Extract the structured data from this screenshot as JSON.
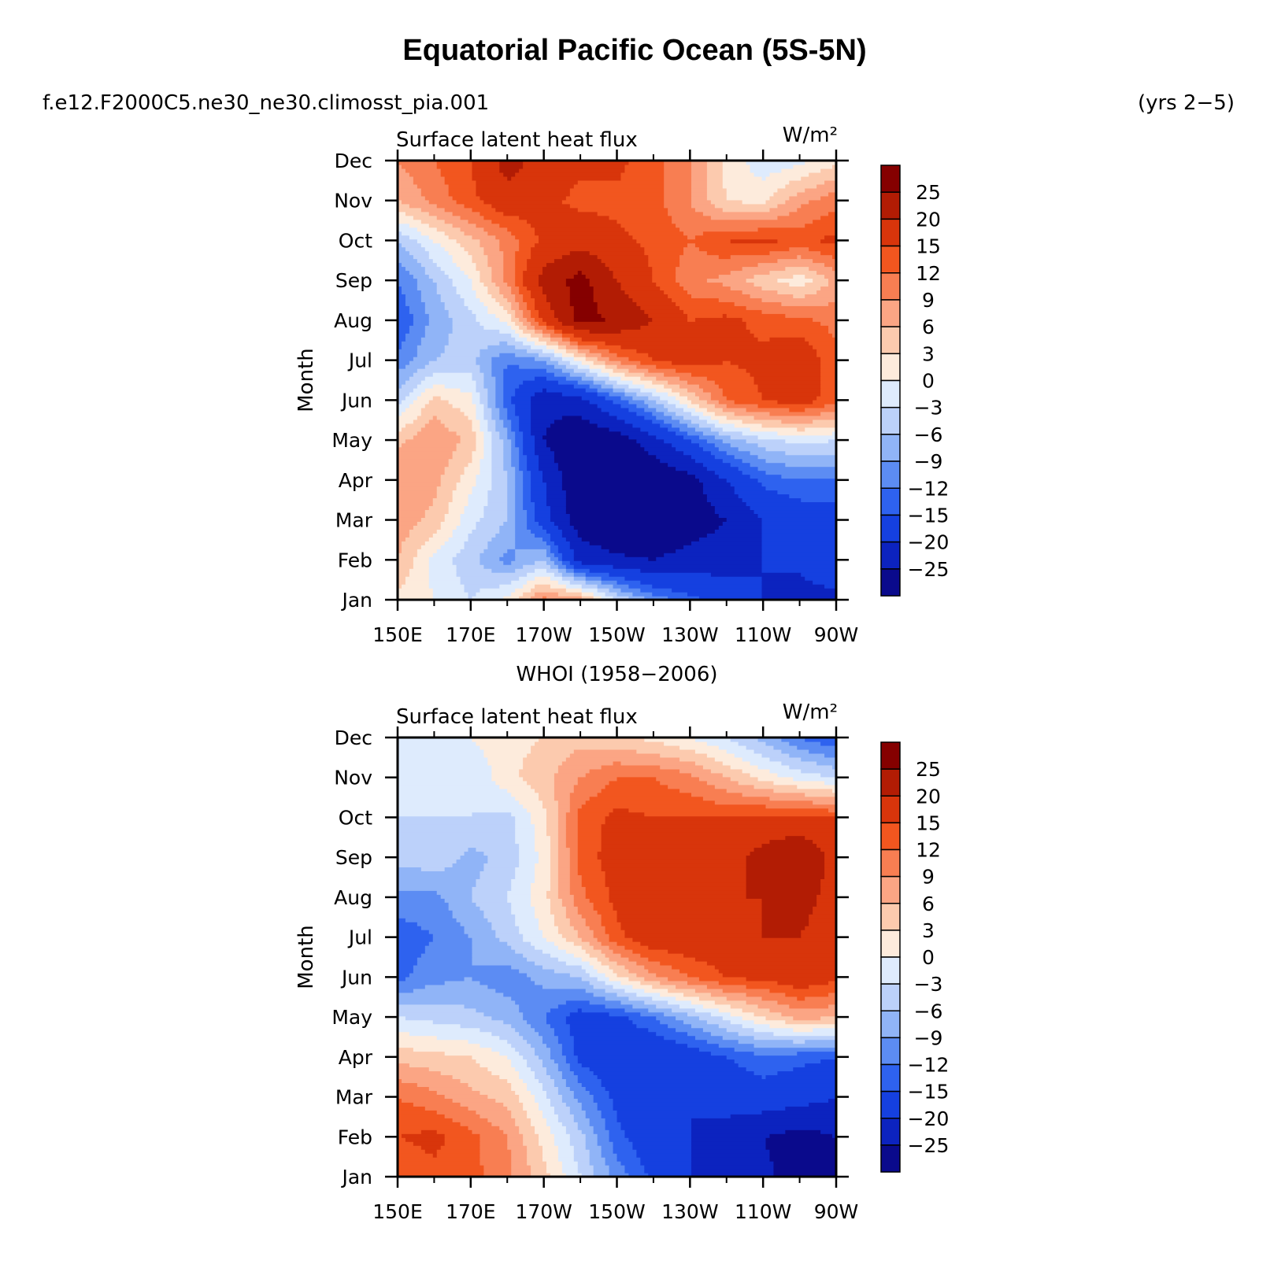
{
  "figure": {
    "title": "Equatorial Pacific Ocean (5S-5N)",
    "case_name": "f.e12.F2000C5.ne30_ne30.climosst_pia.001",
    "years": "(yrs 2−5)"
  },
  "chart_data": [
    {
      "type": "heatmap",
      "panel_title": "",
      "variable": "Surface latent heat flux",
      "units": "W/m²",
      "ylabel": "Month",
      "x_ticklabels": [
        "150E",
        "170E",
        "170W",
        "150W",
        "130W",
        "110W",
        "90W"
      ],
      "y_ticklabels": [
        "Jan",
        "Feb",
        "Mar",
        "Apr",
        "May",
        "Jun",
        "Jul",
        "Aug",
        "Sep",
        "Oct",
        "Nov",
        "Dec"
      ],
      "colorbar_labels": [
        "25",
        "20",
        "15",
        "12",
        "9",
        "6",
        "3",
        "0",
        "−3",
        "−6",
        "−9",
        "−12",
        "−15",
        "−20",
        "−25"
      ],
      "x_lon": [
        150,
        160,
        170,
        180,
        190,
        200,
        210,
        220,
        230,
        240,
        250,
        260,
        270
      ],
      "values": [
        [
          2,
          0,
          -3,
          1,
          10,
          8,
          -3,
          -10,
          -14,
          -17,
          -20,
          -22,
          -22
        ],
        [
          6,
          -1,
          -5,
          -10,
          -6,
          -22,
          -24,
          -25,
          -23,
          -22,
          -20,
          -19,
          -15
        ],
        [
          8,
          5,
          -2,
          -6,
          -18,
          -28,
          -30,
          -30,
          -28,
          -25,
          -20,
          -18,
          -17
        ],
        [
          9,
          7,
          1,
          -6,
          -20,
          -30,
          -30,
          -30,
          -27,
          -20,
          -14,
          -12,
          -12
        ],
        [
          5,
          9,
          5,
          -8,
          -25,
          -30,
          -28,
          -22,
          -15,
          -8,
          -4,
          -2,
          -3
        ],
        [
          -4,
          4,
          1,
          -14,
          -24,
          -22,
          -14,
          -6,
          3,
          12,
          15,
          17,
          13
        ],
        [
          -11,
          -6,
          -5,
          -12,
          -9,
          1,
          10,
          15,
          17,
          15,
          16,
          18,
          13
        ],
        [
          -15,
          -8,
          -4,
          1,
          16,
          27,
          24,
          20,
          15,
          16,
          14,
          13,
          11
        ],
        [
          -12,
          -6,
          0,
          10,
          22,
          27,
          20,
          15,
          10,
          8,
          4,
          1,
          7
        ],
        [
          -6,
          0,
          5,
          10,
          16,
          18,
          16,
          14,
          12,
          15,
          16,
          14,
          16
        ],
        [
          6,
          10,
          14,
          18,
          16,
          14,
          14,
          13,
          9,
          3,
          2,
          8,
          11
        ],
        [
          9,
          12,
          15,
          22,
          18,
          16,
          16,
          13,
          9,
          2,
          -2,
          -1,
          2
        ]
      ]
    },
    {
      "type": "heatmap",
      "panel_title": "WHOI (1958−2006)",
      "variable": "Surface latent heat flux",
      "units": "W/m²",
      "ylabel": "Month",
      "x_ticklabels": [
        "150E",
        "170E",
        "170W",
        "150W",
        "130W",
        "110W",
        "90W"
      ],
      "y_ticklabels": [
        "Jan",
        "Feb",
        "Mar",
        "Apr",
        "May",
        "Jun",
        "Jul",
        "Aug",
        "Sep",
        "Oct",
        "Nov",
        "Dec"
      ],
      "colorbar_labels": [
        "25",
        "20",
        "15",
        "12",
        "9",
        "6",
        "3",
        "0",
        "−3",
        "−6",
        "−9",
        "−12",
        "−15",
        "−20",
        "−25"
      ],
      "x_lon": [
        150,
        160,
        170,
        180,
        190,
        200,
        210,
        220,
        230,
        240,
        250,
        260,
        270
      ],
      "values": [
        [
          12,
          14,
          13,
          10,
          4,
          -3,
          -10,
          -16,
          -20,
          -22,
          -24,
          -27,
          -30
        ],
        [
          15,
          16,
          13,
          9,
          2,
          -5,
          -14,
          -18,
          -20,
          -22,
          -25,
          -27,
          -25
        ],
        [
          12,
          10,
          7,
          5,
          -2,
          -10,
          -16,
          -19,
          -20,
          -18,
          -17,
          -18,
          -20
        ],
        [
          5,
          4,
          3,
          0,
          -7,
          -16,
          -19,
          -20,
          -18,
          -15,
          -13,
          -14,
          -15
        ],
        [
          -3,
          -4,
          -5,
          -7,
          -12,
          -17,
          -16,
          -12,
          -7,
          -2,
          3,
          7,
          6
        ],
        [
          -13,
          -10,
          -9,
          -11,
          -8,
          -6,
          2,
          8,
          12,
          15,
          16,
          18,
          16
        ],
        [
          -14,
          -12,
          -9,
          -5,
          0,
          6,
          14,
          18,
          18,
          18,
          20,
          20,
          17
        ],
        [
          -10,
          -10,
          -6,
          -3,
          2,
          11,
          16,
          20,
          18,
          20,
          20,
          22,
          18
        ],
        [
          -5,
          -4,
          -7,
          -5,
          1,
          13,
          17,
          18,
          17,
          18,
          22,
          25,
          18
        ],
        [
          -3,
          -3,
          -3,
          -4,
          2,
          13,
          16,
          15,
          15,
          15,
          16,
          16,
          15
        ],
        [
          -3,
          -3,
          -3,
          2,
          5,
          9,
          12,
          12,
          10,
          6,
          2,
          -1,
          -3
        ],
        [
          -3,
          -2,
          0,
          2,
          3,
          5,
          4,
          2,
          0,
          -3,
          -7,
          -12,
          -15
        ]
      ]
    }
  ]
}
